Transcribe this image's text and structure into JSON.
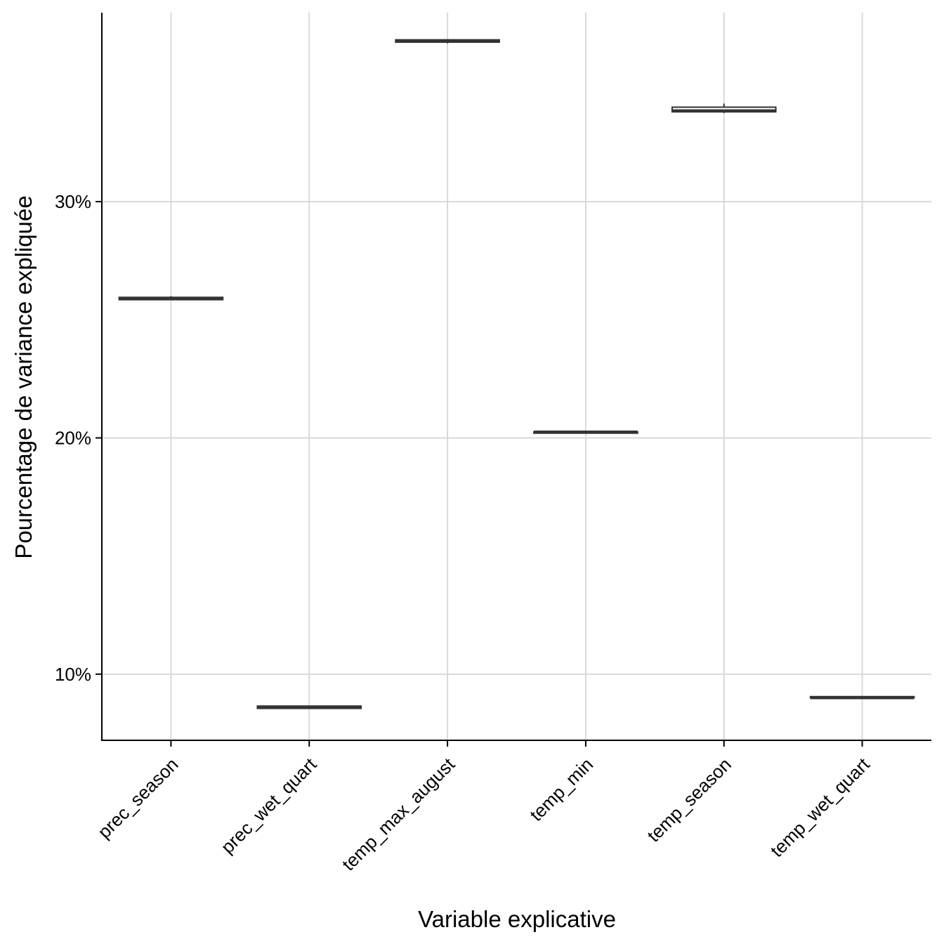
{
  "chart_data": {
    "type": "box",
    "title": "",
    "xlabel": "Variable explicative",
    "ylabel": "Pourcentage de variance expliquée",
    "categories": [
      "prec_season",
      "prec_wet_quart",
      "temp_max_august",
      "temp_min",
      "temp_season",
      "temp_wet_quart"
    ],
    "series": [
      {
        "boxes": [
          {
            "category": "prec_season",
            "min": 25.85,
            "q1": 25.85,
            "median": 25.9,
            "q3": 25.95,
            "max": 26.0
          },
          {
            "category": "prec_wet_quart",
            "min": 8.55,
            "q1": 8.55,
            "median": 8.6,
            "q3": 8.65,
            "max": 8.65
          },
          {
            "category": "temp_max_august",
            "min": 36.7,
            "q1": 36.75,
            "median": 36.8,
            "q3": 36.85,
            "max": 36.85
          },
          {
            "category": "temp_min",
            "min": 20.2,
            "q1": 20.2,
            "median": 20.25,
            "q3": 20.25,
            "max": 20.3
          },
          {
            "category": "temp_season",
            "min": 33.75,
            "q1": 33.8,
            "median": 33.85,
            "q3": 34.0,
            "max": 34.15
          },
          {
            "category": "temp_wet_quart",
            "min": 9.0,
            "q1": 9.0,
            "median": 9.0,
            "q3": 9.05,
            "max": 9.05
          }
        ]
      }
    ],
    "yticks": [
      10,
      20,
      30
    ],
    "ytick_labels": [
      "10%",
      "20%",
      "30%"
    ],
    "ylim": [
      7.2,
      38.0
    ],
    "y_unit": "%",
    "grid": true,
    "colors": {
      "box": "#333333",
      "grid": "#d9d9d9",
      "axis": "#000000",
      "fill": "#ffffff"
    }
  }
}
